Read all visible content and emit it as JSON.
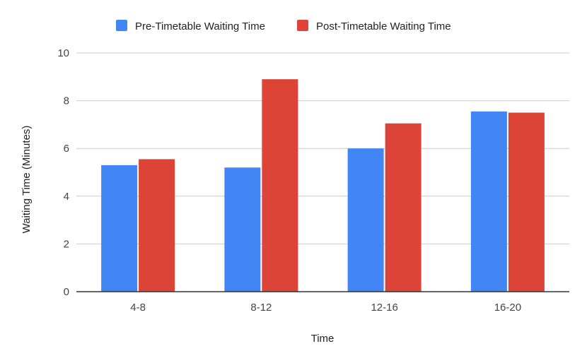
{
  "chart_data": {
    "type": "bar",
    "title": "",
    "xlabel": "Time",
    "ylabel": "Waiting Time (Minutes)",
    "categories": [
      "4-8",
      "8-12",
      "12-16",
      "16-20"
    ],
    "series": [
      {
        "name": "Pre-Timetable Waiting Time",
        "color": "#4285f4",
        "values": [
          5.3,
          5.2,
          6.0,
          7.55
        ]
      },
      {
        "name": "Post-Timetable Waiting Time",
        "color": "#db4437",
        "values": [
          5.55,
          8.9,
          7.05,
          7.5
        ]
      }
    ],
    "ylim": [
      0,
      10
    ],
    "yticks": [
      0,
      2,
      4,
      6,
      8,
      10
    ],
    "grid": true,
    "legend_position": "top"
  }
}
